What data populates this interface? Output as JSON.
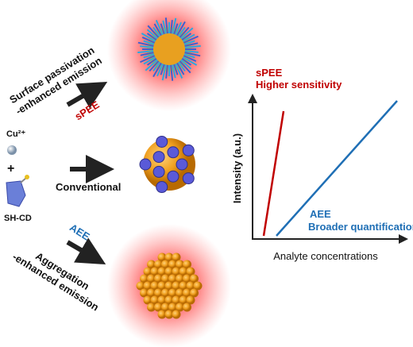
{
  "left_panel": {
    "passivation_label": [
      "Surface passivation",
      "-enhanced emission"
    ],
    "passivation_tag": "sPEE",
    "ion": "Cu²⁺",
    "plus": "+",
    "dot": "SH-CD",
    "conventional_label": "Conventional",
    "aggregation_tag": "AEE",
    "aggregation_label": [
      "Aggregation",
      "-enhanced emission"
    ]
  },
  "plot": {
    "y_label": "Intensity (a.u.)",
    "x_label": "Analyte concentrations",
    "spee_label": [
      "sPEE",
      "Higher sensitivity"
    ],
    "aee_label": [
      "AEE",
      "Broader quantification"
    ]
  }
}
